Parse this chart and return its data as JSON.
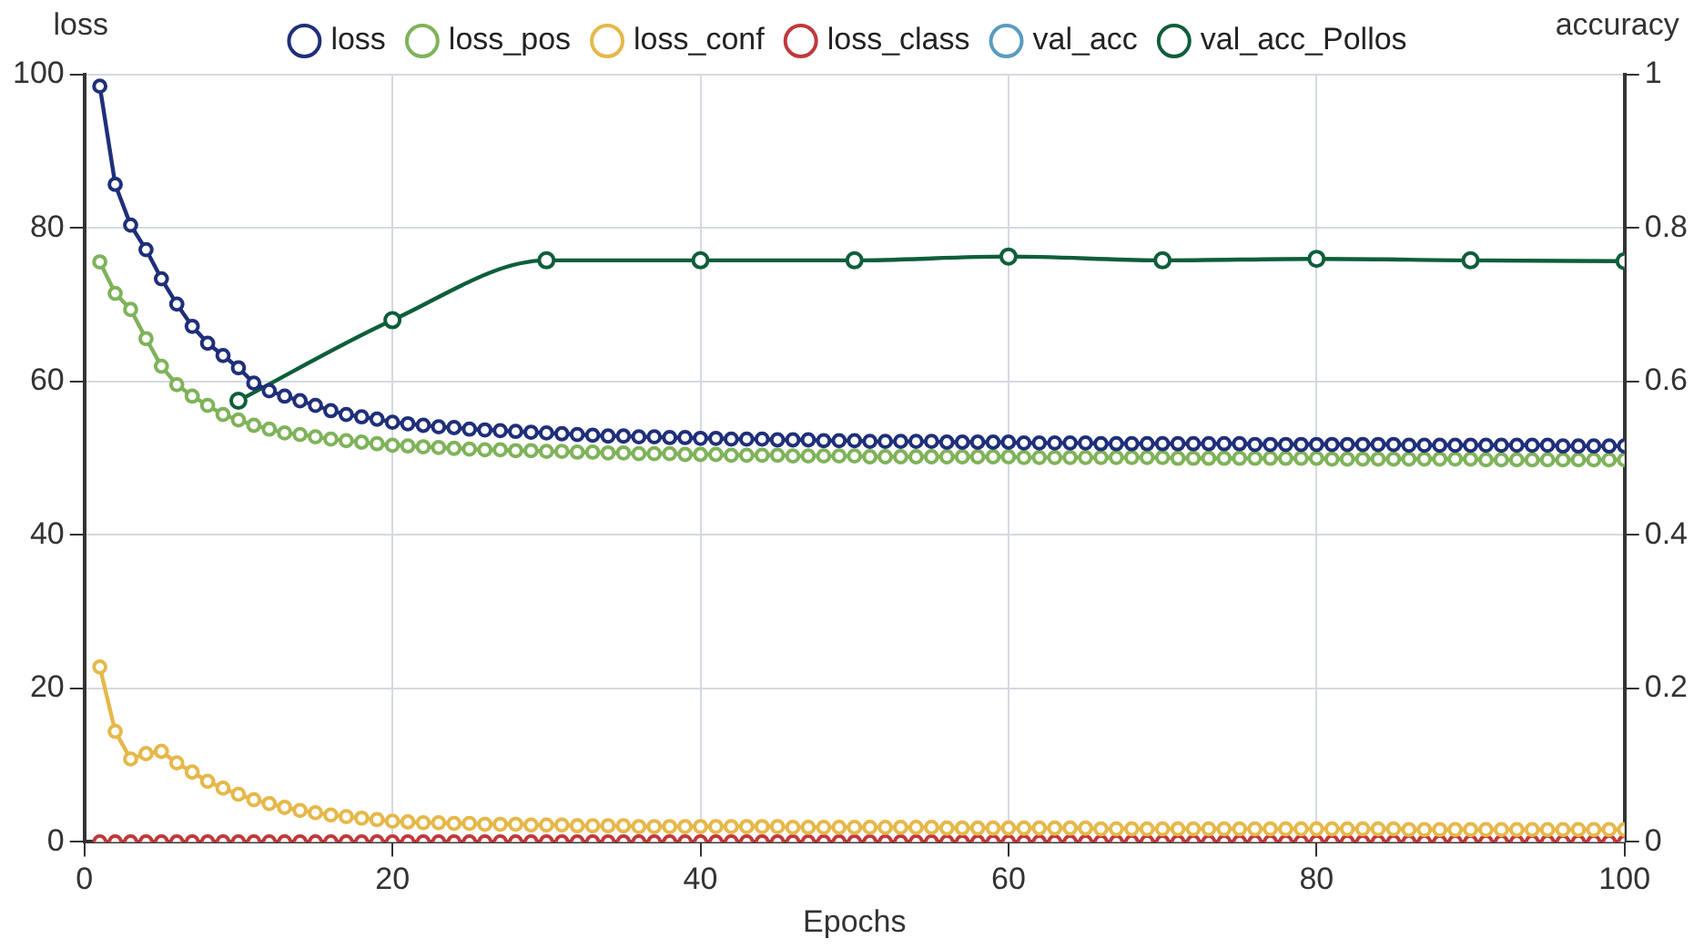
{
  "chart_data": {
    "type": "line",
    "xlabel": "Epochs",
    "ylabel": "loss",
    "y2label": "accuracy",
    "x": [
      1,
      2,
      3,
      4,
      5,
      6,
      7,
      8,
      9,
      10,
      11,
      12,
      13,
      14,
      15,
      16,
      17,
      18,
      19,
      20,
      21,
      22,
      23,
      24,
      25,
      26,
      27,
      28,
      29,
      30,
      31,
      32,
      33,
      34,
      35,
      36,
      37,
      38,
      39,
      40,
      41,
      42,
      43,
      44,
      45,
      46,
      47,
      48,
      49,
      50,
      51,
      52,
      53,
      54,
      55,
      56,
      57,
      58,
      59,
      60,
      61,
      62,
      63,
      64,
      65,
      66,
      67,
      68,
      69,
      70,
      71,
      72,
      73,
      74,
      75,
      76,
      77,
      78,
      79,
      80,
      81,
      82,
      83,
      84,
      85,
      86,
      87,
      88,
      89,
      90,
      91,
      92,
      93,
      94,
      95,
      96,
      97,
      98,
      99,
      100
    ],
    "xlim": [
      0,
      100
    ],
    "xticks": [
      0,
      20,
      40,
      60,
      80,
      100
    ],
    "ylim": [
      0,
      100
    ],
    "yticks": [
      0,
      20,
      40,
      60,
      80,
      100
    ],
    "y2lim": [
      0,
      1
    ],
    "y2ticks": [
      0,
      0.2,
      0.4,
      0.6,
      0.8,
      1
    ],
    "grid": true,
    "legend": "top",
    "marker": "circle",
    "line_style": "solid",
    "series": [
      {
        "name": "loss",
        "color": "#1f2f7a",
        "values": [
          98.5,
          85.7,
          80.4,
          77.2,
          73.4,
          70.1,
          67.2,
          65.0,
          63.4,
          61.8,
          59.8,
          58.8,
          58.1,
          57.5,
          56.9,
          56.2,
          55.7,
          55.4,
          55.1,
          54.7,
          54.5,
          54.3,
          54.1,
          54.0,
          53.8,
          53.7,
          53.6,
          53.5,
          53.4,
          53.3,
          53.2,
          53.1,
          53.0,
          52.9,
          52.9,
          52.8,
          52.8,
          52.7,
          52.7,
          52.6,
          52.6,
          52.5,
          52.5,
          52.5,
          52.4,
          52.4,
          52.4,
          52.3,
          52.3,
          52.3,
          52.2,
          52.2,
          52.2,
          52.2,
          52.2,
          52.1,
          52.1,
          52.1,
          52.1,
          52.1,
          52.0,
          52.0,
          52.0,
          52.0,
          52.0,
          51.9,
          51.9,
          51.9,
          51.9,
          51.9,
          51.9,
          51.9,
          51.9,
          51.9,
          51.9,
          51.8,
          51.8,
          51.8,
          51.8,
          51.8,
          51.8,
          51.8,
          51.8,
          51.8,
          51.8,
          51.7,
          51.7,
          51.7,
          51.7,
          51.7,
          51.7,
          51.7,
          51.7,
          51.7,
          51.7,
          51.6,
          51.6,
          51.6,
          51.6,
          51.6
        ]
      },
      {
        "name": "loss_pos",
        "color": "#7fb35a",
        "values": [
          75.6,
          71.5,
          69.4,
          65.6,
          62.0,
          59.6,
          58.1,
          56.9,
          55.7,
          55.0,
          54.3,
          53.8,
          53.3,
          53.1,
          52.8,
          52.5,
          52.3,
          52.1,
          51.9,
          51.7,
          51.6,
          51.5,
          51.4,
          51.3,
          51.2,
          51.1,
          51.1,
          51.0,
          51.0,
          50.9,
          50.9,
          50.8,
          50.8,
          50.7,
          50.7,
          50.6,
          50.6,
          50.6,
          50.5,
          50.5,
          50.5,
          50.4,
          50.4,
          50.4,
          50.4,
          50.3,
          50.3,
          50.3,
          50.3,
          50.3,
          50.2,
          50.2,
          50.2,
          50.2,
          50.2,
          50.2,
          50.2,
          50.2,
          50.2,
          50.2,
          50.1,
          50.1,
          50.1,
          50.1,
          50.1,
          50.1,
          50.1,
          50.1,
          50.1,
          50.1,
          50.0,
          50.0,
          50.0,
          50.0,
          50.0,
          50.0,
          50.0,
          50.0,
          50.0,
          50.0,
          49.9,
          49.9,
          49.9,
          49.9,
          49.9,
          49.9,
          49.9,
          49.9,
          49.9,
          49.9,
          49.8,
          49.8,
          49.8,
          49.8,
          49.8,
          49.8,
          49.8,
          49.8,
          49.8,
          49.8
        ]
      },
      {
        "name": "loss_conf",
        "color": "#e6b84a",
        "values": [
          22.8,
          14.4,
          10.8,
          11.5,
          11.8,
          10.3,
          9.1,
          7.9,
          7.0,
          6.2,
          5.5,
          5.0,
          4.5,
          4.1,
          3.8,
          3.5,
          3.3,
          3.1,
          2.9,
          2.7,
          2.6,
          2.5,
          2.5,
          2.4,
          2.4,
          2.3,
          2.3,
          2.3,
          2.2,
          2.2,
          2.2,
          2.1,
          2.1,
          2.1,
          2.1,
          2.0,
          2.0,
          2.0,
          2.0,
          2.0,
          2.0,
          2.0,
          2.0,
          2.0,
          2.0,
          1.9,
          1.9,
          1.9,
          1.9,
          1.9,
          1.9,
          1.9,
          1.9,
          1.9,
          1.9,
          1.8,
          1.8,
          1.8,
          1.8,
          1.8,
          1.8,
          1.8,
          1.8,
          1.8,
          1.8,
          1.7,
          1.7,
          1.7,
          1.7,
          1.7,
          1.7,
          1.7,
          1.7,
          1.7,
          1.7,
          1.7,
          1.7,
          1.7,
          1.7,
          1.7,
          1.7,
          1.7,
          1.7,
          1.7,
          1.7,
          1.6,
          1.6,
          1.6,
          1.6,
          1.6,
          1.6,
          1.6,
          1.6,
          1.6,
          1.6,
          1.6,
          1.6,
          1.6,
          1.6,
          1.6
        ]
      },
      {
        "name": "loss_class",
        "color": "#c0393b",
        "values": [
          0,
          0,
          0,
          0,
          0,
          0,
          0,
          0,
          0,
          0,
          0,
          0,
          0,
          0,
          0,
          0,
          0,
          0,
          0,
          0,
          0,
          0,
          0,
          0,
          0,
          0,
          0,
          0,
          0,
          0,
          0,
          0,
          0,
          0,
          0,
          0,
          0,
          0,
          0,
          0,
          0,
          0,
          0,
          0,
          0,
          0,
          0,
          0,
          0,
          0,
          0,
          0,
          0,
          0,
          0,
          0,
          0,
          0,
          0,
          0,
          0,
          0,
          0,
          0,
          0,
          0,
          0,
          0,
          0,
          0,
          0,
          0,
          0,
          0,
          0,
          0,
          0,
          0,
          0,
          0,
          0,
          0,
          0,
          0,
          0,
          0,
          0,
          0,
          0,
          0,
          0,
          0,
          0,
          0,
          0,
          0,
          0,
          0,
          0,
          0
        ]
      },
      {
        "name": "val_acc",
        "color": "#5a9bc0",
        "axis": "y2",
        "values": [
          null,
          null,
          null,
          null,
          null,
          null,
          null,
          null,
          null,
          null,
          null,
          null,
          null,
          null,
          null,
          null,
          null,
          null,
          null,
          null,
          null,
          null,
          null,
          null,
          null,
          null,
          null,
          null,
          null,
          null,
          null,
          null,
          null,
          null,
          null,
          null,
          null,
          null,
          null,
          null,
          null,
          null,
          null,
          null,
          null,
          null,
          null,
          null,
          null,
          null,
          null,
          null,
          null,
          null,
          null,
          null,
          null,
          null,
          null,
          null,
          null,
          null,
          null,
          null,
          null,
          null,
          null,
          null,
          null,
          null,
          null,
          null,
          null,
          null,
          null,
          null,
          null,
          null,
          null,
          null,
          null,
          null,
          null,
          null,
          null,
          null,
          null,
          null,
          null,
          null,
          null,
          null,
          null,
          null,
          null,
          null,
          null,
          null,
          null,
          null
        ]
      },
      {
        "name": "val_acc_Pollos",
        "color": "#0e5e3a",
        "axis": "y2",
        "x": [
          10,
          20,
          30,
          40,
          50,
          60,
          70,
          80,
          90,
          100
        ],
        "values": [
          0.575,
          0.68,
          0.758,
          0.758,
          0.758,
          0.763,
          0.758,
          0.76,
          0.758,
          0.757
        ]
      }
    ]
  }
}
